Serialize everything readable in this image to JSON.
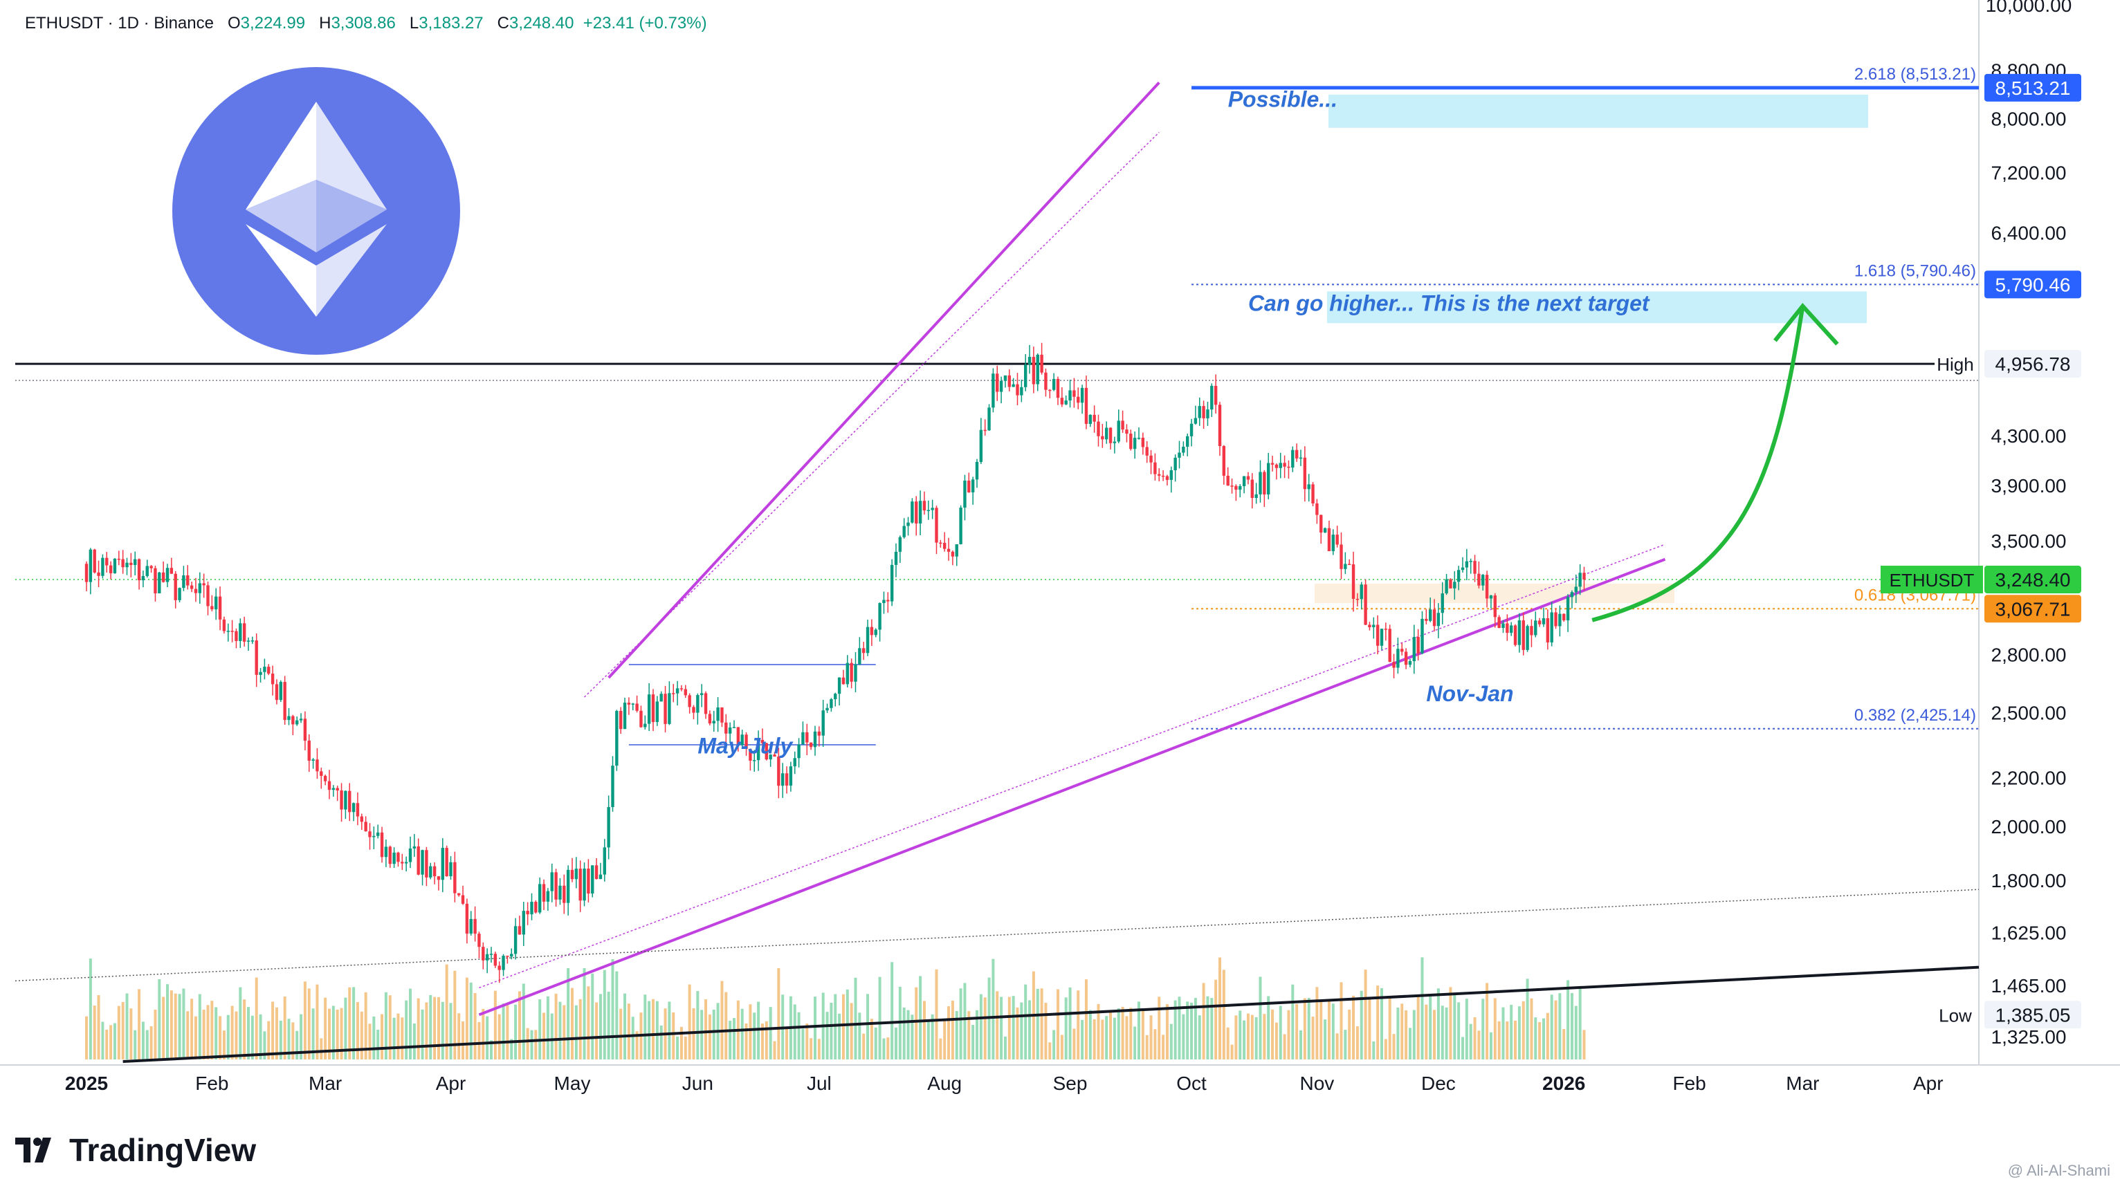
{
  "header": {
    "symbol": "ETHUSDT · 1D · Binance",
    "o_label": "O",
    "o_value": "3,224.99",
    "h_label": "H",
    "h_value": "3,308.86",
    "l_label": "L",
    "l_value": "3,183.27",
    "c_label": "C",
    "c_value": "3,248.40",
    "change": "+23.41 (+0.73%)"
  },
  "brand": {
    "name": "TradingView",
    "credit": "@ Ali-Al-Shami"
  },
  "colors": {
    "up": "#089981",
    "down": "#f23645",
    "channel": "#c040e0",
    "fib_blue": "#2962ff",
    "target_box": "#c8f0fb",
    "arrow": "#22b83a",
    "ethusdt_green": "#2ecc40",
    "orange": "#f7931a",
    "logo": "#6278e8"
  },
  "chart_data": {
    "type": "candlestick",
    "symbol": "ETHUSDT",
    "interval": "1D",
    "exchange": "Binance",
    "y_scale": "log",
    "ylim": [
      1325,
      10000
    ],
    "y_ticks": [
      "10,000.00",
      "8,800.00",
      "8,000.00",
      "7,200.00",
      "6,400.00",
      "4,300.00",
      "3,900.00",
      "3,500.00",
      "2,800.00",
      "2,500.00",
      "2,200.00",
      "2,000.00",
      "1,800.00",
      "1,625.00",
      "1,465.00",
      "1,325.00"
    ],
    "x_ticks": [
      "2025",
      "Feb",
      "Mar",
      "Apr",
      "May",
      "Jun",
      "Jul",
      "Aug",
      "Sep",
      "Oct",
      "Nov",
      "Dec",
      "2026",
      "Feb",
      "Mar",
      "Apr"
    ],
    "monthly_path": [
      {
        "date": "2025-01-01",
        "close": 3350
      },
      {
        "date": "2025-01-15",
        "close": 3300
      },
      {
        "date": "2025-02-01",
        "close": 3100
      },
      {
        "date": "2025-02-15",
        "close": 2700
      },
      {
        "date": "2025-03-01",
        "close": 2200
      },
      {
        "date": "2025-03-15",
        "close": 1900
      },
      {
        "date": "2025-04-01",
        "close": 1850
      },
      {
        "date": "2025-04-09",
        "close": 1500
      },
      {
        "date": "2025-04-25",
        "close": 1780
      },
      {
        "date": "2025-05-08",
        "close": 1800
      },
      {
        "date": "2025-05-12",
        "close": 2500
      },
      {
        "date": "2025-06-01",
        "close": 2550
      },
      {
        "date": "2025-06-22",
        "close": 2200
      },
      {
        "date": "2025-07-01",
        "close": 2450
      },
      {
        "date": "2025-07-15",
        "close": 3000
      },
      {
        "date": "2025-07-25",
        "close": 3750
      },
      {
        "date": "2025-08-03",
        "close": 3500
      },
      {
        "date": "2025-08-13",
        "close": 4700
      },
      {
        "date": "2025-08-24",
        "close": 4900
      },
      {
        "date": "2025-09-10",
        "close": 4400
      },
      {
        "date": "2025-09-25",
        "close": 3950
      },
      {
        "date": "2025-10-06",
        "close": 4600
      },
      {
        "date": "2025-10-11",
        "close": 3800
      },
      {
        "date": "2025-10-27",
        "close": 4100
      },
      {
        "date": "2025-11-04",
        "close": 3500
      },
      {
        "date": "2025-11-21",
        "close": 2750
      },
      {
        "date": "2025-12-03",
        "close": 3150
      },
      {
        "date": "2025-12-10",
        "close": 3380
      },
      {
        "date": "2025-12-18",
        "close": 2900
      },
      {
        "date": "2025-12-31",
        "close": 2970
      },
      {
        "date": "2026-01-06",
        "close": 3248.4
      }
    ],
    "price_tags": [
      {
        "name": "ETHUSDT",
        "value": 3248.4,
        "label": "3,248.40"
      },
      {
        "name": "Fib 0.618",
        "value": 3067.71,
        "label": "3,067.71"
      },
      {
        "name": "Fib 1.618",
        "value": 5790.46,
        "label": "5,790.46"
      },
      {
        "name": "Fib 2.618",
        "value": 8513.21,
        "label": "8,513.21"
      },
      {
        "name": "High",
        "value": 4956.78,
        "label": "4,956.78"
      },
      {
        "name": "Low",
        "value": 1385.05,
        "label": "1,385.05"
      }
    ],
    "fib_levels": [
      {
        "label": "2.618 (8,513.21)",
        "value": 8513.21
      },
      {
        "label": "1.618 (5,790.46)",
        "value": 5790.46
      },
      {
        "label": "0.618 (3,067.71)",
        "value": 3067.71
      },
      {
        "label": "0.382 (2,425.14)",
        "value": 2425.14
      }
    ],
    "annotations": [
      {
        "text": "Possible...",
        "date": "2025-10-10",
        "value": 8200
      },
      {
        "text": "Can go higher... This is the next target",
        "date": "2025-10-15",
        "value": 5500
      },
      {
        "text": "May-July",
        "date": "2025-06-01",
        "value": 2310
      },
      {
        "text": "Nov-Jan",
        "date": "2025-11-28",
        "value": 2560
      }
    ],
    "high_label": "High",
    "low_label": "Low",
    "legend_placement": "top-left"
  }
}
